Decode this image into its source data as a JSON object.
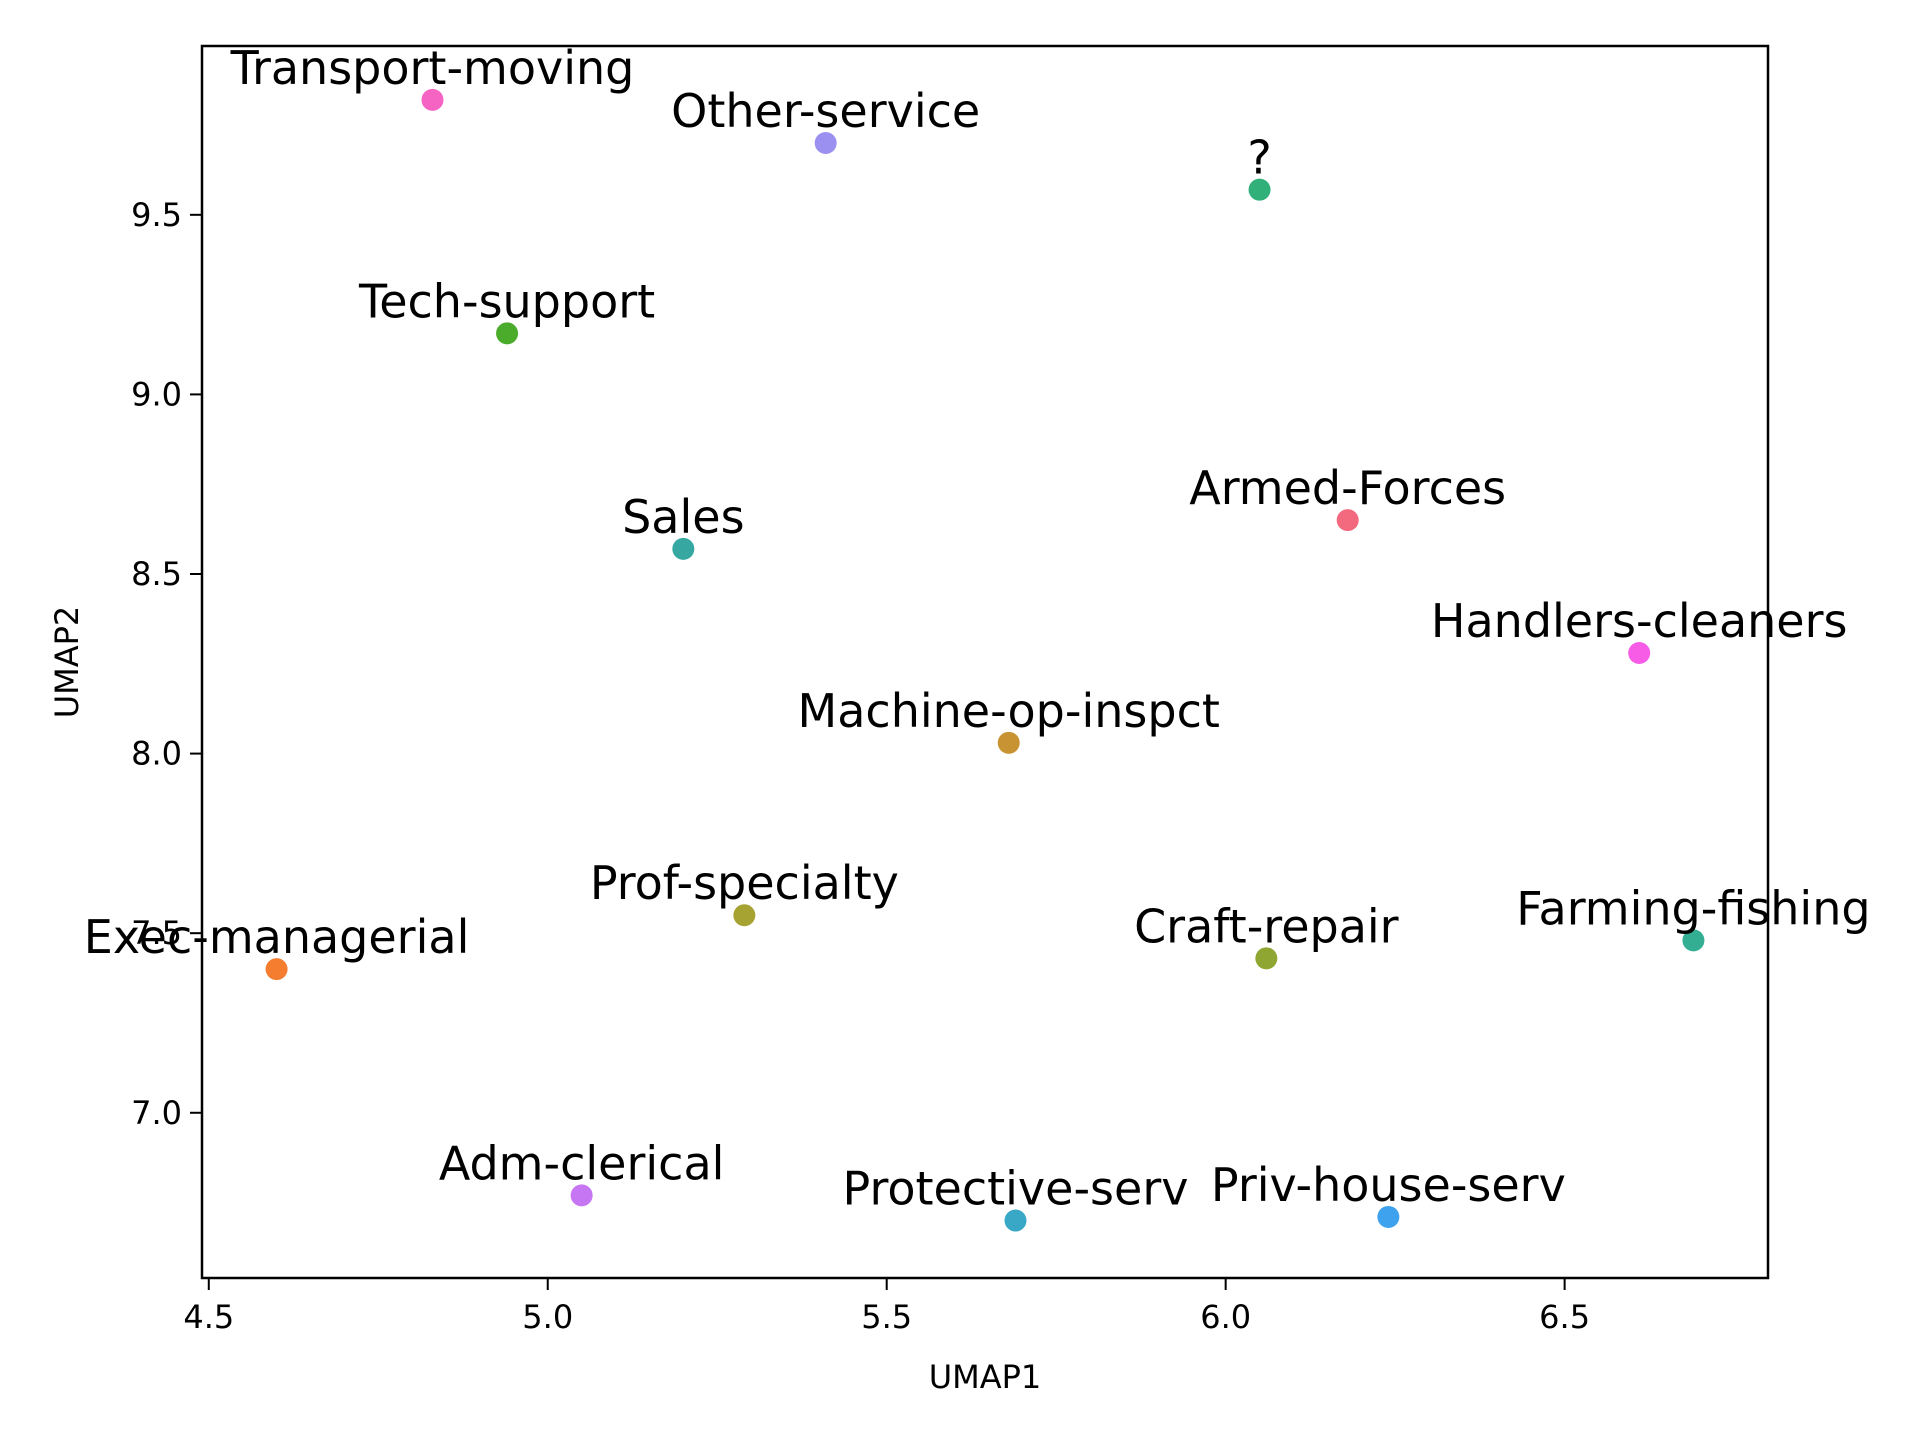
{
  "chart_data": {
    "type": "scatter",
    "xlabel": "UMAP1",
    "ylabel": "UMAP2",
    "xlim": [
      4.49,
      6.8
    ],
    "ylim": [
      6.54,
      9.97
    ],
    "xticks": [
      4.5,
      5.0,
      5.5,
      6.0,
      6.5
    ],
    "yticks": [
      7.0,
      7.5,
      8.0,
      8.5,
      9.0,
      9.5
    ],
    "xtick_labels": [
      "4.5",
      "5.0",
      "5.5",
      "6.0",
      "6.5"
    ],
    "ytick_labels": [
      "7.0",
      "7.5",
      "8.0",
      "8.5",
      "9.0",
      "9.5"
    ],
    "grid": false,
    "points": [
      {
        "label": "Transport-moving",
        "x": 4.83,
        "y": 9.82,
        "color": "#f564c3"
      },
      {
        "label": "Other-service",
        "x": 5.41,
        "y": 9.7,
        "color": "#9b8ff0"
      },
      {
        "label": "?",
        "x": 6.05,
        "y": 9.57,
        "color": "#31b07a"
      },
      {
        "label": "Tech-support",
        "x": 4.94,
        "y": 9.17,
        "color": "#4aac2a"
      },
      {
        "label": "Armed-Forces",
        "x": 6.18,
        "y": 8.65,
        "color": "#f3697d"
      },
      {
        "label": "Sales",
        "x": 5.2,
        "y": 8.57,
        "color": "#36a8a1"
      },
      {
        "label": "Handlers-cleaners",
        "x": 6.61,
        "y": 8.28,
        "color": "#f75ce6"
      },
      {
        "label": "Machine-op-inspct",
        "x": 5.68,
        "y": 8.03,
        "color": "#c89332"
      },
      {
        "label": "Prof-specialty",
        "x": 5.29,
        "y": 7.55,
        "color": "#a7a333"
      },
      {
        "label": "Farming-fishing",
        "x": 6.69,
        "y": 7.48,
        "color": "#34ae92"
      },
      {
        "label": "Craft-repair",
        "x": 6.06,
        "y": 7.43,
        "color": "#8fa632"
      },
      {
        "label": "Exec-managerial",
        "x": 4.6,
        "y": 7.4,
        "color": "#f57d30"
      },
      {
        "label": "Adm-clerical",
        "x": 5.05,
        "y": 6.77,
        "color": "#c676f2"
      },
      {
        "label": "Priv-house-serv",
        "x": 6.24,
        "y": 6.71,
        "color": "#3fa2ee"
      },
      {
        "label": "Protective-serv",
        "x": 5.69,
        "y": 6.7,
        "color": "#38a8c6"
      }
    ]
  }
}
